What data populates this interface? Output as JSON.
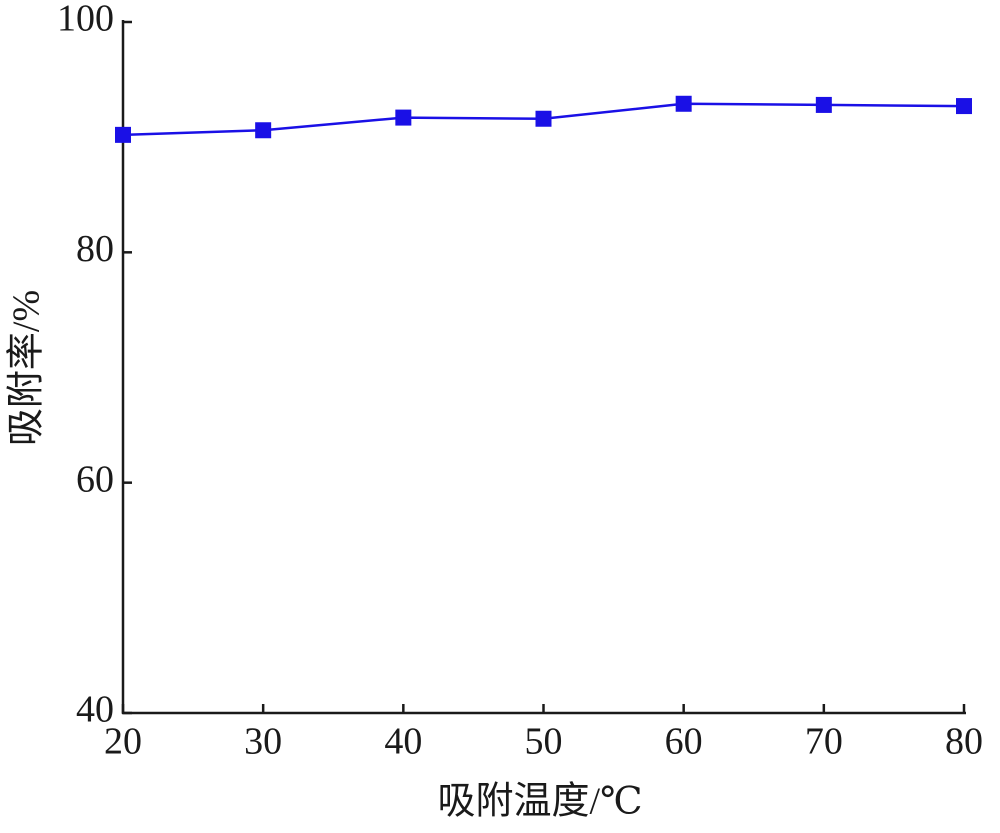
{
  "chart_data": {
    "type": "line",
    "x_label": "吸附温度/℃",
    "y_label": "吸附率/%",
    "x": [
      20,
      30,
      40,
      50,
      60,
      70,
      80
    ],
    "series": [
      {
        "color": "#1a10e6",
        "values": [
          90.2,
          90.6,
          91.7,
          91.6,
          92.9,
          92.8,
          92.7
        ]
      }
    ],
    "xlim": [
      20,
      80
    ],
    "xticks": [
      20,
      30,
      40,
      50,
      60,
      70,
      80
    ],
    "ylim": [
      40,
      100
    ],
    "yticks": [
      40,
      60,
      80,
      100
    ],
    "grid": false
  }
}
